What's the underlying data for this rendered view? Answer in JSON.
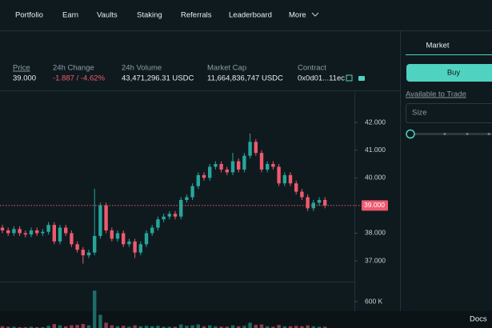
{
  "nav": {
    "items": [
      "Portfolio",
      "Earn",
      "Vaults",
      "Staking",
      "Referrals",
      "Leaderboard",
      "More"
    ]
  },
  "stats": [
    {
      "label": "Price",
      "value": "39.000"
    },
    {
      "label": "24h Change",
      "value": "-1.887 / -4.62%"
    },
    {
      "label": "24h Volume",
      "value": "43,471,296.31 USDC"
    },
    {
      "label": "Market Cap",
      "value": "11,664,836,747 USDC"
    },
    {
      "label": "Contract",
      "value": "0x0d01...11ec"
    }
  ],
  "chart_data": {
    "type": "candlestick",
    "up_color": "#26a69a",
    "down_color": "#ef5a6f",
    "ylim": [
      36.25,
      43.16
    ],
    "yticks": [
      {
        "value": 37,
        "label": "37.000"
      },
      {
        "value": 38,
        "label": "38.000"
      },
      {
        "value": 40,
        "label": "40.000"
      },
      {
        "value": 41,
        "label": "41.000"
      },
      {
        "value": 42,
        "label": "42.000"
      }
    ],
    "last_price": {
      "value": 39,
      "label": "39.000"
    },
    "open": [
      38.2,
      38.1,
      38.0,
      38.15,
      38.0,
      37.95,
      38.1,
      38.0,
      38.05,
      38.3,
      37.7,
      38.2,
      38.0,
      37.6,
      37.4,
      37.2,
      37.3,
      37.9,
      39.0,
      38.1,
      37.8,
      38.0,
      37.6,
      37.7,
      37.3,
      37.6,
      38.0,
      38.2,
      38.5,
      38.6,
      38.7,
      38.6,
      39.2,
      39.3,
      39.7,
      40.1,
      40.0,
      40.4,
      40.5,
      40.3,
      40.2,
      40.6,
      40.3,
      40.8,
      41.3,
      40.9,
      40.3,
      40.5,
      40.4,
      39.8,
      40.1,
      39.8,
      39.5,
      39.3,
      38.9,
      39.1,
      39.2
    ],
    "high": [
      38.3,
      38.2,
      38.25,
      38.25,
      38.1,
      38.2,
      38.2,
      38.15,
      38.4,
      38.4,
      38.3,
      38.3,
      38.1,
      37.7,
      37.5,
      37.4,
      39.6,
      39.1,
      39.1,
      38.2,
      38.1,
      38.1,
      37.8,
      37.8,
      37.7,
      38.1,
      38.3,
      38.6,
      38.7,
      38.8,
      38.8,
      39.3,
      39.4,
      39.8,
      40.2,
      40.2,
      40.5,
      40.6,
      40.6,
      40.4,
      40.9,
      40.7,
      40.9,
      41.6,
      41.4,
      41.0,
      40.6,
      40.6,
      40.5,
      40.2,
      40.2,
      39.9,
      39.6,
      39.4,
      39.2,
      39.3,
      39.3
    ],
    "low": [
      38.0,
      37.9,
      37.9,
      37.9,
      37.85,
      37.85,
      37.9,
      37.9,
      37.95,
      37.6,
      37.6,
      37.9,
      37.5,
      37.3,
      36.9,
      37.1,
      37.2,
      37.8,
      38.0,
      37.7,
      37.7,
      37.5,
      37.5,
      37.1,
      37.2,
      37.5,
      37.9,
      38.1,
      38.4,
      38.5,
      38.5,
      38.5,
      39.1,
      39.2,
      39.6,
      39.9,
      39.9,
      40.3,
      40.2,
      40.1,
      40.1,
      40.2,
      40.2,
      40.7,
      40.8,
      40.2,
      40.2,
      40.3,
      39.7,
      39.7,
      39.7,
      39.4,
      39.2,
      38.8,
      38.8,
      39.0,
      38.9
    ],
    "close": [
      38.1,
      38.0,
      38.15,
      38.0,
      37.95,
      38.1,
      38.0,
      38.05,
      38.3,
      37.7,
      38.2,
      38.0,
      37.6,
      37.4,
      37.2,
      37.3,
      37.9,
      39.0,
      38.1,
      37.8,
      38.0,
      37.6,
      37.7,
      37.3,
      37.6,
      38.0,
      38.2,
      38.5,
      38.6,
      38.7,
      38.6,
      39.2,
      39.3,
      39.7,
      40.1,
      40.0,
      40.4,
      40.5,
      40.3,
      40.2,
      40.6,
      40.3,
      40.8,
      41.3,
      40.9,
      40.3,
      40.5,
      40.4,
      39.8,
      40.1,
      39.8,
      39.5,
      39.3,
      38.9,
      39.1,
      39.2,
      39.0
    ],
    "volume": [
      40000,
      30000,
      30000,
      20000,
      20000,
      30000,
      20000,
      20000,
      50000,
      90000,
      60000,
      40000,
      60000,
      70000,
      90000,
      60000,
      850000,
      300000,
      120000,
      60000,
      40000,
      50000,
      30000,
      60000,
      40000,
      50000,
      40000,
      50000,
      30000,
      30000,
      30000,
      80000,
      50000,
      60000,
      80000,
      40000,
      60000,
      40000,
      30000,
      30000,
      60000,
      40000,
      50000,
      120000,
      70000,
      80000,
      40000,
      30000,
      70000,
      40000,
      40000,
      50000,
      40000,
      60000,
      40000,
      30000,
      30000
    ],
    "vlim": [
      0,
      1000000
    ],
    "vticks": [
      {
        "value": 600000,
        "label": "600 K"
      }
    ]
  },
  "order_panel": {
    "tab": "Market",
    "button": "Buy",
    "available": "Available to Trade",
    "size_placeholder": "Size"
  },
  "footer": {
    "link": "Docs"
  }
}
